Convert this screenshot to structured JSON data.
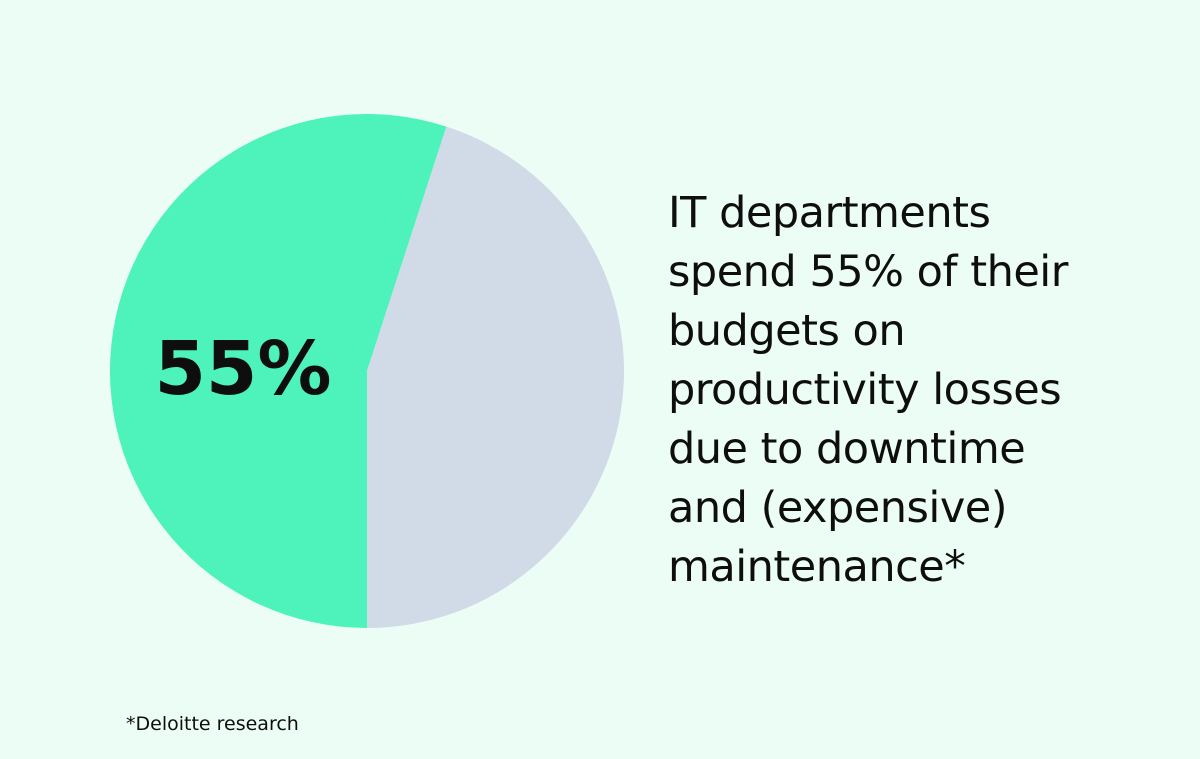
{
  "chart_data": {
    "type": "pie",
    "slices": [
      {
        "value": 55,
        "color": "#4ef2bb"
      },
      {
        "value": 45,
        "color": "#d0dbe7"
      }
    ],
    "center_label": "55%"
  },
  "headline": {
    "lines": [
      "IT departments",
      "spend 55% of their",
      "budgets on",
      "productivity losses",
      "due to downtime",
      "and (expensive)",
      "maintenance*"
    ]
  },
  "footnote": "*Deloitte research",
  "colors": {
    "background": "#ecfdf6",
    "text": "#0e0e0e"
  }
}
